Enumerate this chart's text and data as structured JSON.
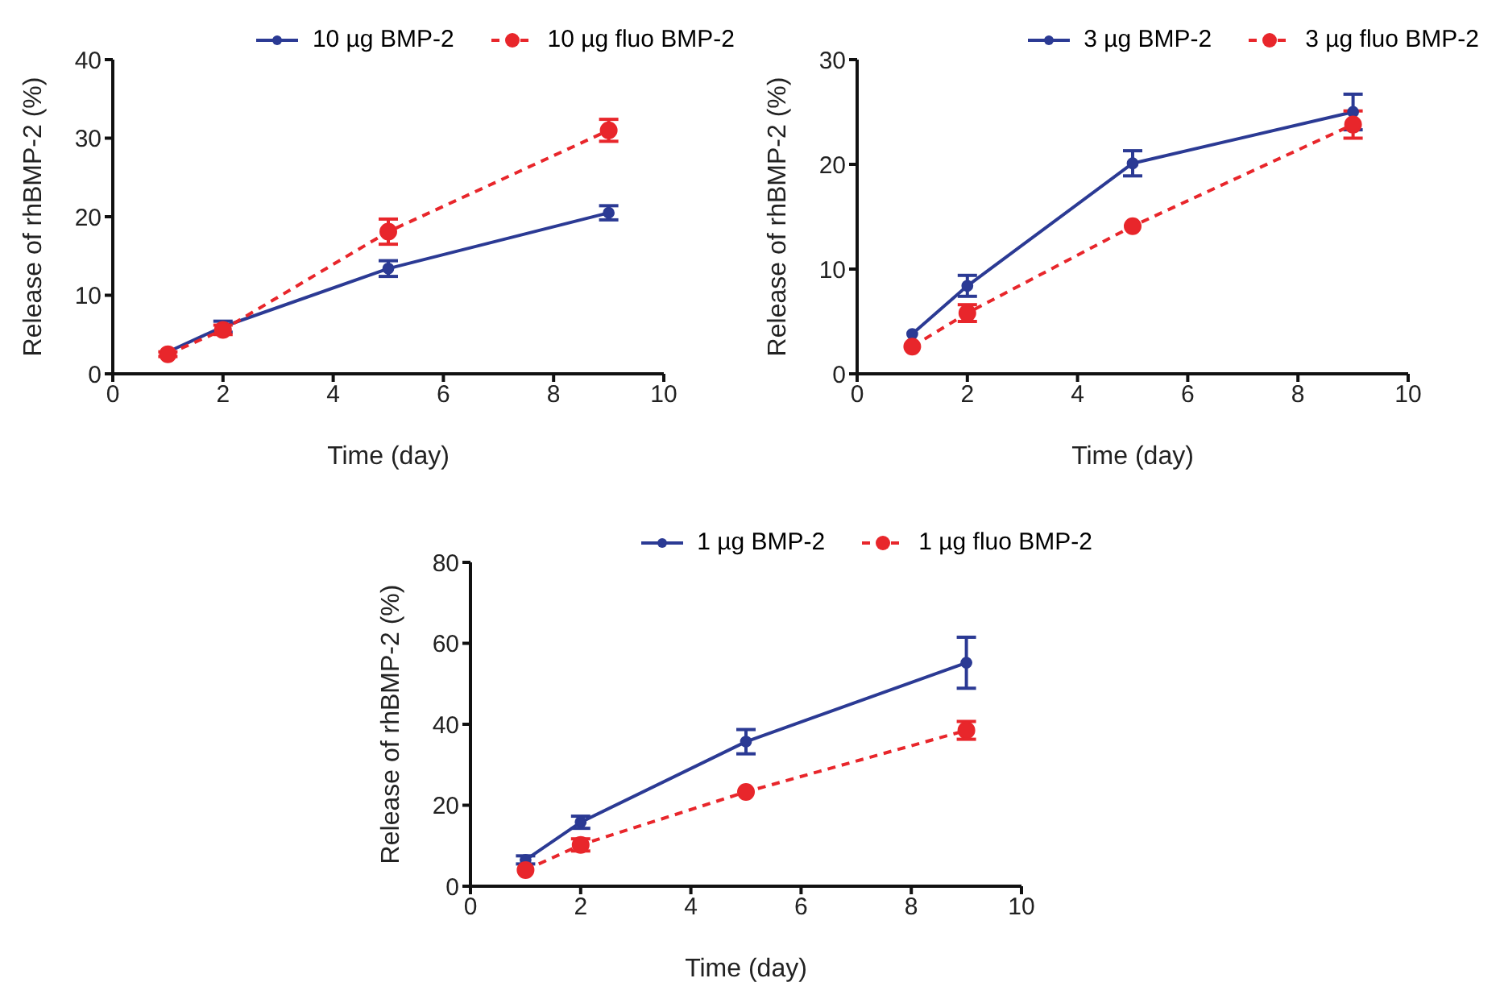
{
  "chart_data": [
    {
      "type": "line",
      "xlabel": "Time (day)",
      "ylabel": "Release of rhBMP-2 (%)",
      "x": [
        1,
        2,
        5,
        9
      ],
      "xlim": [
        0,
        10
      ],
      "xticks": [
        0,
        2,
        4,
        6,
        8,
        10
      ],
      "ylim": [
        0,
        40
      ],
      "yticks": [
        0,
        10,
        20,
        30,
        40
      ],
      "grid": false,
      "legend": "top right",
      "marker": "circle",
      "series": [
        {
          "name": "10 µg BMP-2",
          "color": "#2b3a94",
          "line_style": "solid",
          "values": [
            2.8,
            6.0,
            13.4,
            20.5
          ],
          "errors": [
            null,
            0.7,
            1.0,
            0.9
          ]
        },
        {
          "name": "10 µg fluo BMP-2",
          "color": "#e8262b",
          "line_style": "dashed",
          "values": [
            2.5,
            5.6,
            18.1,
            31.0
          ],
          "errors": [
            0.3,
            0.6,
            1.6,
            1.4
          ]
        }
      ]
    },
    {
      "type": "line",
      "xlabel": "Time (day)",
      "ylabel": "Release of rhBMP-2 (%)",
      "x": [
        1,
        2,
        5,
        9
      ],
      "xlim": [
        0,
        10
      ],
      "xticks": [
        0,
        2,
        4,
        6,
        8,
        10
      ],
      "ylim": [
        0,
        30
      ],
      "yticks": [
        0,
        10,
        20,
        30
      ],
      "grid": false,
      "legend": "top right",
      "marker": "circle",
      "series": [
        {
          "name": "3 µg BMP-2",
          "color": "#2b3a94",
          "line_style": "solid",
          "values": [
            3.8,
            8.4,
            20.1,
            25.0
          ],
          "errors": [
            null,
            1.0,
            1.2,
            1.7
          ]
        },
        {
          "name": "3 µg fluo BMP-2",
          "color": "#e8262b",
          "line_style": "dashed",
          "values": [
            2.6,
            5.8,
            14.1,
            23.8
          ],
          "errors": [
            null,
            0.8,
            null,
            1.3
          ]
        }
      ]
    },
    {
      "type": "line",
      "xlabel": "Time (day)",
      "ylabel": "Release of rhBMP-2 (%)",
      "x": [
        1,
        2,
        5,
        9
      ],
      "xlim": [
        0,
        10
      ],
      "xticks": [
        0,
        2,
        4,
        6,
        8,
        10
      ],
      "ylim": [
        0,
        80
      ],
      "yticks": [
        0,
        20,
        40,
        60,
        80
      ],
      "grid": false,
      "legend": "top right",
      "marker": "circle",
      "series": [
        {
          "name": "1 µg BMP-2",
          "color": "#2b3a94",
          "line_style": "solid",
          "values": [
            6.5,
            15.8,
            35.7,
            55.2
          ],
          "errors": [
            1.0,
            1.5,
            3.0,
            6.3
          ]
        },
        {
          "name": "1 µg fluo BMP-2",
          "color": "#e8262b",
          "line_style": "dashed",
          "values": [
            4.0,
            10.2,
            23.3,
            38.5
          ],
          "errors": [
            null,
            1.5,
            null,
            2.2
          ]
        }
      ]
    }
  ]
}
